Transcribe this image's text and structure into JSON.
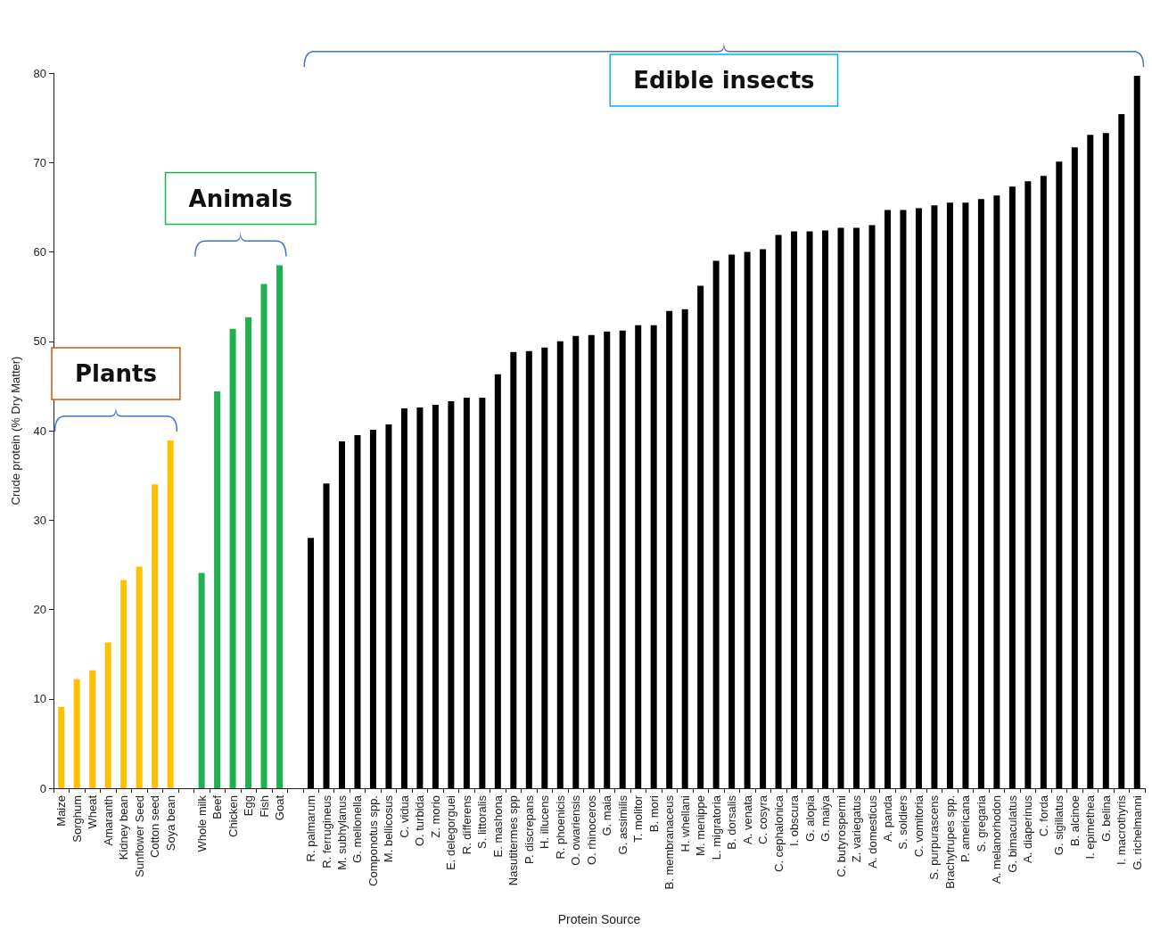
{
  "chart_data": {
    "type": "bar",
    "xlabel": "Protein Source",
    "ylabel": "Crude protein (% Dry Matter)",
    "categories": [
      "Maize",
      "Sorghum",
      "Wheat",
      "Amaranth",
      "Kidney bean",
      "Sunflower Seed",
      "Cotton seed",
      "Soya bean",
      null,
      "Whole milk",
      "Beef",
      "Chicken",
      "Egg",
      "Fish",
      "Goat",
      null,
      "R. palmarum",
      "R. ferrugineus",
      "M. subhylanus",
      "G. mellonella",
      "Componotus spp.",
      "M. bellicosus",
      "C. vidua",
      "O. turbida",
      "Z. morio",
      "E. delegorguei",
      "R. differens",
      "S. littoralis",
      "E. mashona",
      "Nasutitermes spp",
      "P. discrepans",
      "H. illucens",
      "R. phoenicis",
      "O. owariensis",
      "O. rhinoceros",
      "G. maia",
      "G. assimilis",
      "T. molitor",
      "B. mori",
      "B. membranaceus",
      "H. whellani",
      "M. menippe",
      "L. migratoria",
      "B. dorsalis",
      "A. venata",
      "C. cosyra",
      "C. cephalonica",
      "I. obscura",
      "G. alopia",
      "G. maiya",
      "C. butyrospermi",
      "Z. variegatus",
      "A. domesticus",
      "A. panda",
      "S. soldiers",
      "C. vomitoria",
      "S. purpurascens",
      "Brachytrupes spp.",
      "P. americana",
      "S. gregaria",
      "A. melanorhodon",
      "G. bimaculatus",
      "A. diaperinus",
      "C. forda",
      "G. sigillatus",
      "B. alcinoe",
      "I. epimethea",
      "G. belina",
      "I. macrothyris",
      "G. richelmanni"
    ],
    "values": [
      9.1,
      12.2,
      13.2,
      16.3,
      23.3,
      24.8,
      34,
      38.9,
      null,
      24.1,
      44.4,
      51.4,
      52.7,
      56.4,
      58.5,
      null,
      28.0,
      34.1,
      38.8,
      39.5,
      40.1,
      40.7,
      42.5,
      42.6,
      42.9,
      43.3,
      43.7,
      43.7,
      46.3,
      48.8,
      48.9,
      49.3,
      50.0,
      50.6,
      50.7,
      51.1,
      51.2,
      51.8,
      51.8,
      53.4,
      53.6,
      56.2,
      59.0,
      59.7,
      60.0,
      60.3,
      61.9,
      62.3,
      62.3,
      62.4,
      62.7,
      62.7,
      63.0,
      64.7,
      64.7,
      64.9,
      65.2,
      65.5,
      65.5,
      65.9,
      66.3,
      67.3,
      67.9,
      68.5,
      70.1,
      71.7,
      73.1,
      73.3,
      75.4,
      79.7
    ],
    "colors": [
      "#ffc000",
      "#ffc000",
      "#ffc000",
      "#ffc000",
      "#ffc000",
      "#ffc000",
      "#ffc000",
      "#ffc000",
      null,
      "#1fb050",
      "#1fb050",
      "#1fb050",
      "#1fb050",
      "#1fb050",
      "#1fb050",
      null,
      "#000000",
      "#000000",
      "#000000",
      "#000000",
      "#000000",
      "#000000",
      "#000000",
      "#000000",
      "#000000",
      "#000000",
      "#000000",
      "#000000",
      "#000000",
      "#000000",
      "#000000",
      "#000000",
      "#000000",
      "#000000",
      "#000000",
      "#000000",
      "#000000",
      "#000000",
      "#000000",
      "#000000",
      "#000000",
      "#000000",
      "#000000",
      "#000000",
      "#000000",
      "#000000",
      "#000000",
      "#000000",
      "#000000",
      "#000000",
      "#000000",
      "#000000",
      "#000000",
      "#000000",
      "#000000",
      "#000000",
      "#000000",
      "#000000",
      "#000000",
      "#000000",
      "#000000",
      "#000000",
      "#000000",
      "#000000",
      "#000000",
      "#000000",
      "#000000",
      "#000000",
      "#000000",
      "#000000"
    ],
    "ylim": [
      0,
      80
    ],
    "yticks": [
      0,
      10,
      20,
      30,
      40,
      50,
      60,
      70,
      80
    ],
    "grid": false,
    "annotations": [
      "Plants",
      "Animals",
      "Edible insects"
    ]
  }
}
